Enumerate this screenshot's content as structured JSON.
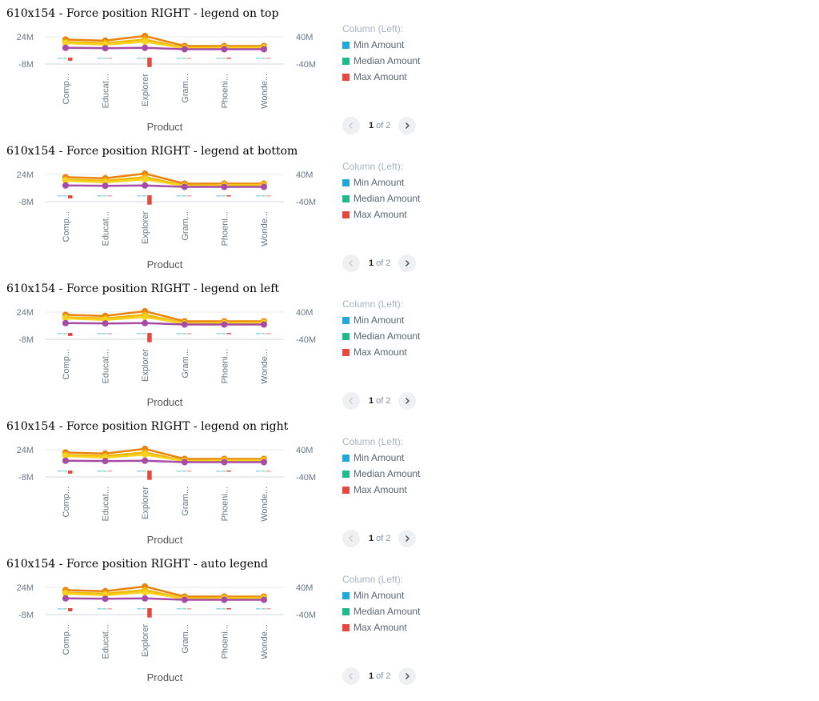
{
  "blocks": [
    {
      "title": "610x154 - Force position RIGHT - legend on top"
    },
    {
      "title": "610x154 - Force position RIGHT - legend at bottom"
    },
    {
      "title": "610x154 - Force position RIGHT - legend on left"
    },
    {
      "title": "610x154 - Force position RIGHT - legend on right"
    },
    {
      "title": "610x154 - Force position RIGHT - auto legend"
    }
  ],
  "legend": {
    "title": "Column (Left):",
    "items": [
      {
        "label": "Min Amount",
        "color": "#1fa8d8"
      },
      {
        "label": "Median Amount",
        "color": "#1dbb8a"
      },
      {
        "label": "Max Amount",
        "color": "#e8473f"
      }
    ]
  },
  "pager": {
    "current": "1",
    "of": "of",
    "total": "2"
  },
  "chart_data": {
    "type": "bar+line",
    "categories": [
      "Comp...",
      "Educat...",
      "Explorer",
      "Gram...",
      "Phoeni...",
      "Wonde..."
    ],
    "xlabel": "Product",
    "left_axis": {
      "ticks": [
        "24M",
        "-8M"
      ],
      "ylim": [
        -8,
        24
      ],
      "unit": "M"
    },
    "right_axis": {
      "ticks": [
        "40M",
        "-40M"
      ],
      "ylim": [
        -40,
        40
      ],
      "unit": "M"
    },
    "bar_series": [
      {
        "name": "Min Amount",
        "color": "#1fa8d8",
        "values": [
          -0.2,
          -0.2,
          -0.2,
          -0.2,
          -0.2,
          -0.2
        ]
      },
      {
        "name": "Median Amount",
        "color": "#1dbb8a",
        "values": [
          -0.2,
          -0.2,
          -0.2,
          -0.2,
          -0.2,
          -0.2
        ]
      },
      {
        "name": "Max Amount",
        "color": "#e8473f",
        "values": [
          -3,
          -0.2,
          -9,
          -0.2,
          -0.6,
          -0.2
        ]
      }
    ],
    "line_series": [
      {
        "color": "#e8830c",
        "values": [
          30,
          28.5,
          35,
          21,
          21,
          21
        ]
      },
      {
        "color": "#f2b705",
        "values": [
          26.5,
          25,
          30,
          18.5,
          19,
          19.5
        ]
      },
      {
        "color": "#f7d21e",
        "values": [
          25,
          23,
          27,
          18,
          18.5,
          18.5
        ]
      },
      {
        "color": "#a64ca6",
        "values": [
          18.5,
          18,
          18.5,
          16.5,
          16.5,
          16.5
        ]
      }
    ]
  }
}
